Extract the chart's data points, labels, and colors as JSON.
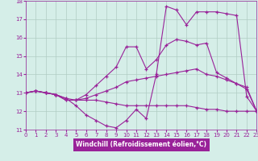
{
  "xlabel": "Windchill (Refroidissement éolien,°C)",
  "bg_color": "#d5eee8",
  "grid_color": "#b0ccc4",
  "line_color": "#992299",
  "xlim": [
    0,
    23
  ],
  "ylim": [
    11,
    18
  ],
  "yticks": [
    11,
    12,
    13,
    14,
    15,
    16,
    17,
    18
  ],
  "xticks": [
    0,
    1,
    2,
    3,
    4,
    5,
    6,
    7,
    8,
    9,
    10,
    11,
    12,
    13,
    14,
    15,
    16,
    17,
    18,
    19,
    20,
    21,
    22,
    23
  ],
  "series": [
    [
      13.0,
      13.1,
      13.0,
      12.9,
      12.6,
      12.6,
      12.6,
      12.6,
      12.5,
      12.4,
      12.3,
      12.3,
      12.3,
      12.3,
      12.3,
      12.3,
      12.3,
      12.2,
      12.1,
      12.1,
      12.0,
      12.0,
      12.0,
      12.0
    ],
    [
      13.0,
      13.1,
      13.0,
      12.9,
      12.6,
      12.6,
      12.7,
      12.9,
      13.1,
      13.3,
      13.6,
      13.7,
      13.8,
      13.9,
      14.0,
      14.1,
      14.2,
      14.3,
      14.0,
      13.9,
      13.7,
      13.5,
      13.3,
      12.0
    ],
    [
      13.0,
      13.1,
      13.0,
      12.9,
      12.7,
      12.6,
      12.9,
      13.4,
      13.9,
      14.4,
      15.5,
      15.5,
      14.3,
      14.8,
      15.6,
      15.9,
      15.8,
      15.6,
      15.7,
      14.1,
      13.8,
      13.5,
      13.2,
      12.0
    ],
    [
      13.0,
      13.1,
      13.0,
      12.9,
      12.7,
      12.3,
      11.8,
      11.5,
      11.2,
      11.1,
      11.5,
      12.1,
      11.6,
      14.0,
      17.7,
      17.5,
      16.7,
      17.4,
      17.4,
      17.4,
      17.3,
      17.2,
      12.8,
      12.0
    ]
  ]
}
